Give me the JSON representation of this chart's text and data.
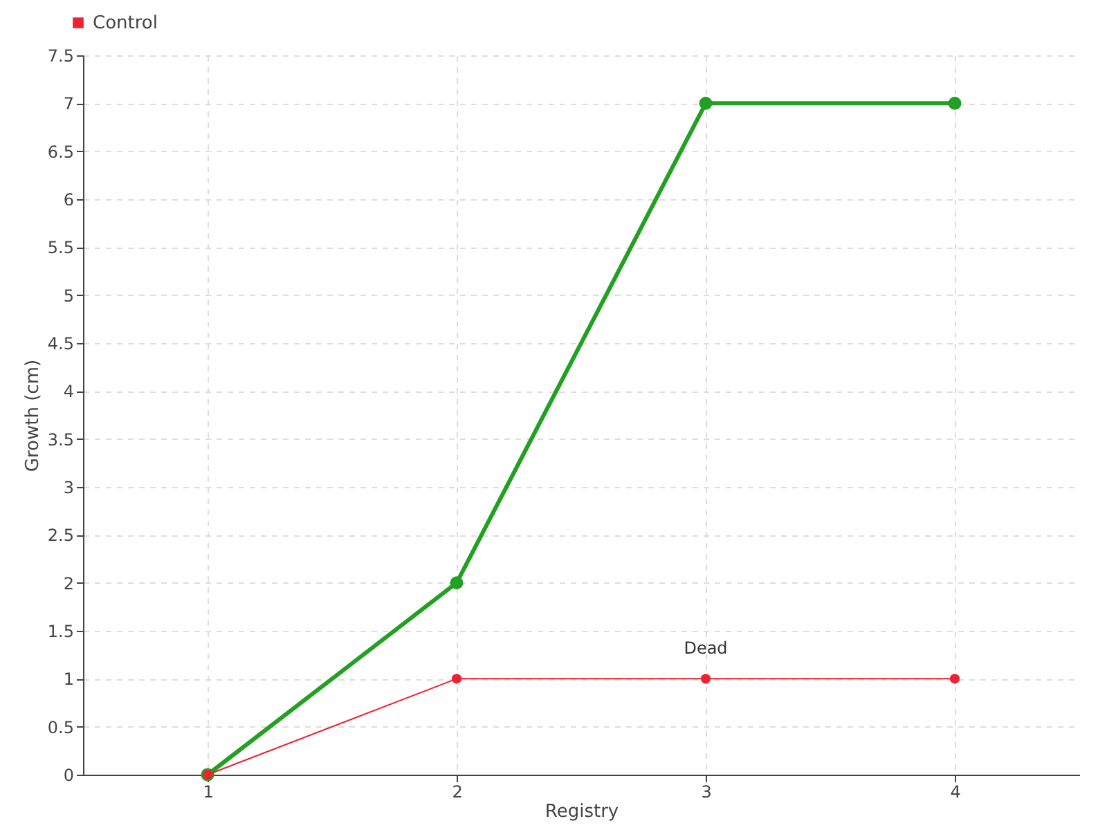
{
  "chart_data": {
    "type": "line",
    "xlabel": "Registry",
    "ylabel": "Growth (cm)",
    "categories": [
      "1",
      "2",
      "3",
      "4"
    ],
    "series": [
      {
        "color": "#22a022",
        "values": [
          0,
          2,
          7,
          7
        ]
      },
      {
        "name": "Control",
        "color": "#ee2233",
        "values": [
          0,
          1,
          1,
          1
        ]
      }
    ],
    "ylim": [
      0,
      7.5
    ],
    "yticks": [
      0,
      0.5,
      1,
      1.5,
      2,
      2.5,
      3,
      3.5,
      4,
      4.5,
      5,
      5.5,
      6,
      6.5,
      7,
      7.5
    ],
    "grid": true,
    "legend": "top left",
    "marker": "circle",
    "line_style": "solid",
    "annotations": [
      {
        "text": "Dead",
        "x": "3",
        "y": 1
      }
    ]
  }
}
